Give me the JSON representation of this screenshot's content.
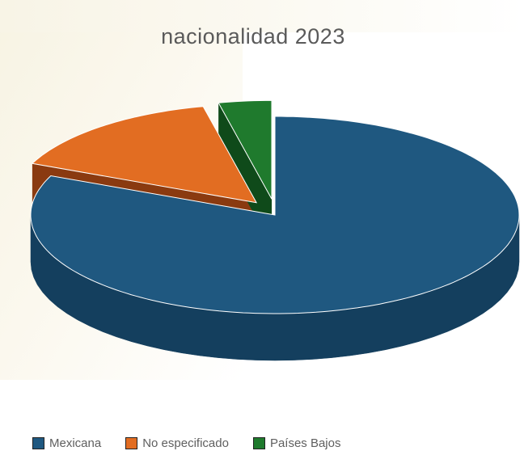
{
  "chart_data": {
    "type": "pie",
    "title": "nacionalidad 2023",
    "categories": [
      "Mexicana",
      "No especificado",
      "Países Bajos"
    ],
    "values": [
      81.5,
      15.0,
      3.5
    ],
    "colors": [
      "#1f5880",
      "#e26d22",
      "#1f7a2d"
    ],
    "side_colors": [
      "#143f5e",
      "#8a3a10",
      "#0f4a1a"
    ],
    "explode": [
      0,
      1,
      1
    ],
    "legend_position": "bottom"
  }
}
